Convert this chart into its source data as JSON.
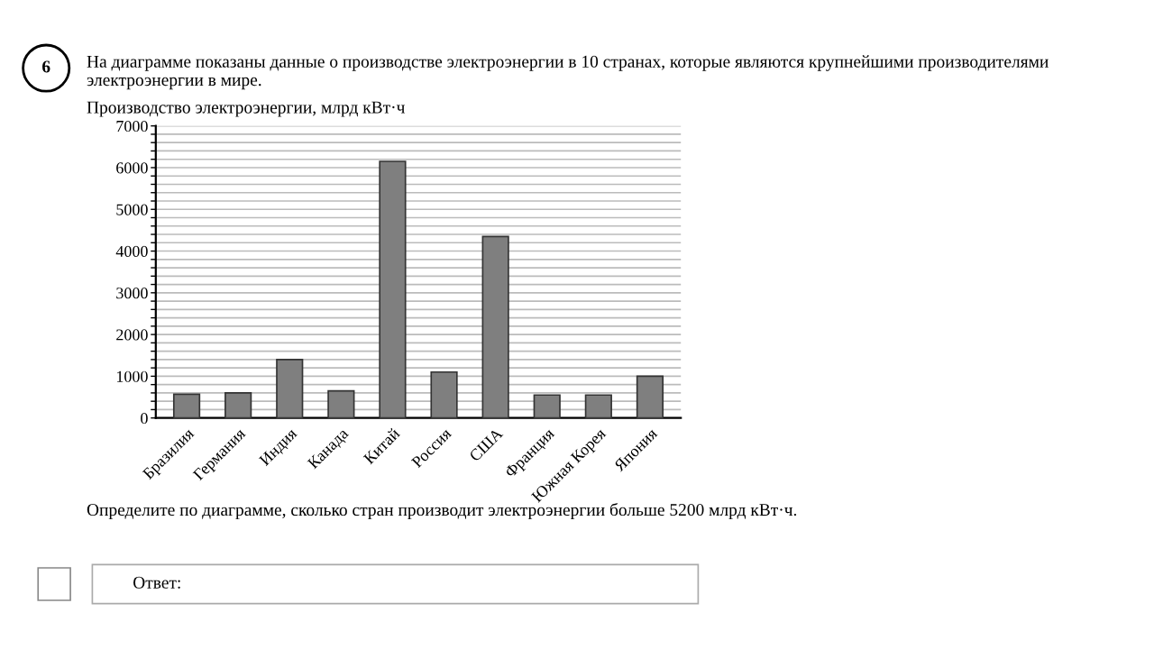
{
  "chart_data": {
    "type": "bar",
    "title": "На диаграмме показаны данные о производстве электроэнергии в 10 странах, которые являются крупнейшими производителями электроэнергии в мире.",
    "ylabel": "Производство электроэнергии, млрд кВт·ч",
    "categories": [
      "Бразилия",
      "Германия",
      "Индия",
      "Канада",
      "Китай",
      "Россия",
      "США",
      "Франция",
      "Южная Корея",
      "Япония"
    ],
    "values": [
      570,
      600,
      1400,
      650,
      6150,
      1100,
      4350,
      550,
      550,
      1000
    ],
    "color": "#7f7f7f",
    "ylim": [
      0,
      7000
    ],
    "yticks": [
      0,
      {
        "value": 200,
        "label": null
      },
      {
        "value": 400,
        "label": null
      },
      {
        "value": 600,
        "label": null
      },
      {
        "value": 800,
        "label": null
      },
      1000,
      {
        "value": 1200,
        "label": null
      },
      {
        "value": 1400,
        "label": null
      },
      {
        "value": 1600,
        "label": null
      },
      {
        "value": 1800,
        "label": null
      },
      2000,
      {
        "value": 2200,
        "label": null
      },
      {
        "value": 2400,
        "label": null
      },
      {
        "value": 2600,
        "label": null
      },
      {
        "value": 2800,
        "label": null
      },
      3000,
      {
        "value": 3200,
        "label": null
      },
      {
        "value": 3400,
        "label": null
      },
      {
        "value": 3600,
        "label": null
      },
      {
        "value": 3800,
        "label": null
      },
      4000,
      {
        "value": 4200,
        "label": null
      },
      {
        "value": 4400,
        "label": null
      },
      {
        "value": 4600,
        "label": null
      },
      {
        "value": 4800,
        "label": null
      },
      5000,
      {
        "value": 5200,
        "label": null
      },
      {
        "value": 5400,
        "label": null
      },
      {
        "value": 5600,
        "label": null
      },
      {
        "value": 5800,
        "label": null
      },
      6000,
      {
        "value": 6200,
        "label": null
      },
      {
        "value": 6400,
        "label": null
      },
      {
        "value": 6600,
        "label": null
      },
      {
        "value": 6800,
        "label": null
      },
      7000
    ],
    "grid": "y",
    "annotations": [
      "6",
      "Определите по диаграмме, сколько стран производит электроэнергии больше 5200 млрд кВт·ч.",
      "Ответ:"
    ]
  }
}
